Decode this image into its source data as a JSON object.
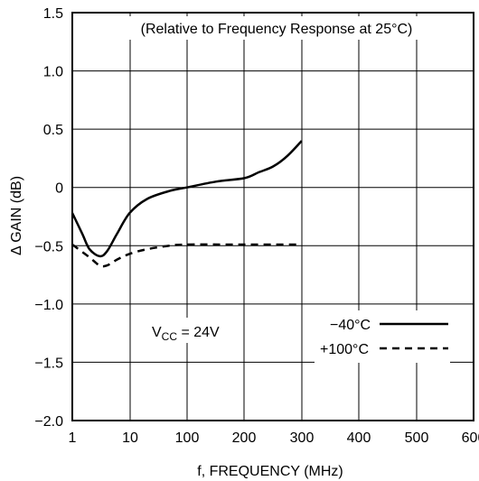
{
  "chart_data": {
    "type": "line",
    "title": "",
    "annotation": "(Relative to Frequency Response at 25°C)",
    "xlabel": "f, FREQUENCY (MHz)",
    "ylabel": "Δ GAIN (dB)",
    "x_ticks": [
      "1",
      "10",
      "100",
      "200",
      "300",
      "400",
      "500",
      "600"
    ],
    "y_ticks": [
      "1.5",
      "1.0",
      "0.5",
      "0",
      "−0.5",
      "−1.0",
      "−1.5",
      "−2.0"
    ],
    "ylim": [
      -2.0,
      1.5
    ],
    "grid": true,
    "condition": {
      "prefix": "V",
      "subscript": "CC",
      "suffix": " = 24V"
    },
    "series": [
      {
        "name": "−40°C",
        "style": "solid",
        "points": [
          {
            "f": 1,
            "db": -0.22
          },
          {
            "f": 1.5,
            "db": -0.4
          },
          {
            "f": 2,
            "db": -0.53
          },
          {
            "f": 3,
            "db": -0.59
          },
          {
            "f": 4,
            "db": -0.55
          },
          {
            "f": 6,
            "db": -0.4
          },
          {
            "f": 10,
            "db": -0.22
          },
          {
            "f": 20,
            "db": -0.1
          },
          {
            "f": 50,
            "db": -0.03
          },
          {
            "f": 100,
            "db": 0.0
          },
          {
            "f": 150,
            "db": 0.05
          },
          {
            "f": 200,
            "db": 0.08
          },
          {
            "f": 225,
            "db": 0.13
          },
          {
            "f": 250,
            "db": 0.18
          },
          {
            "f": 275,
            "db": 0.27
          },
          {
            "f": 300,
            "db": 0.4
          }
        ]
      },
      {
        "name": "+100°C",
        "style": "dashed",
        "points": [
          {
            "f": 1,
            "db": -0.49
          },
          {
            "f": 2,
            "db": -0.6
          },
          {
            "f": 3,
            "db": -0.67
          },
          {
            "f": 4,
            "db": -0.67
          },
          {
            "f": 6,
            "db": -0.62
          },
          {
            "f": 10,
            "db": -0.57
          },
          {
            "f": 20,
            "db": -0.53
          },
          {
            "f": 50,
            "db": -0.5
          },
          {
            "f": 100,
            "db": -0.49
          },
          {
            "f": 200,
            "db": -0.49
          },
          {
            "f": 300,
            "db": -0.49
          }
        ]
      }
    ]
  }
}
